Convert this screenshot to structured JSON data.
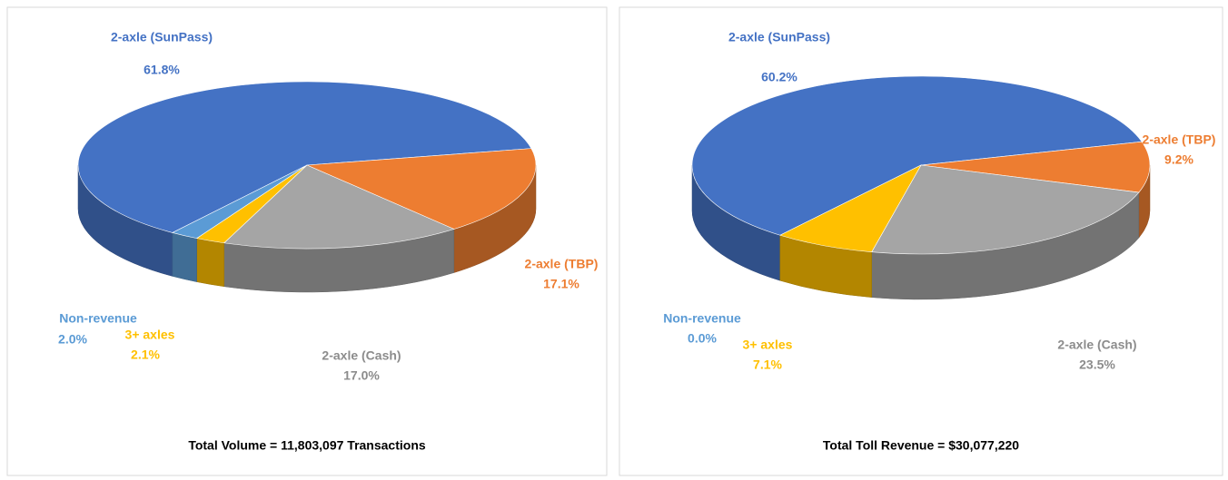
{
  "chart_data": [
    {
      "type": "pie",
      "title": "Total Volume = 11,803,097 Transactions",
      "categories": [
        "2-axle (SunPass)",
        "2-axle (TBP)",
        "2-axle (Cash)",
        "3+ axles",
        "Non-revenue"
      ],
      "values": [
        61.8,
        17.1,
        17.0,
        2.1,
        2.0
      ],
      "value_labels": [
        "61.8%",
        "17.1%",
        "17.0%",
        "2.1%",
        "2.0%"
      ],
      "colors": [
        "#4472c4",
        "#ed7d31",
        "#a5a5a5",
        "#ffc000",
        "#5b9bd5"
      ]
    },
    {
      "type": "pie",
      "title": "Total Toll Revenue = $30,077,220",
      "categories": [
        "2-axle (SunPass)",
        "2-axle (TBP)",
        "2-axle (Cash)",
        "3+ axles",
        "Non-revenue"
      ],
      "values": [
        60.2,
        9.2,
        23.5,
        7.1,
        0.0
      ],
      "value_labels": [
        "60.2%",
        "9.2%",
        "23.5%",
        "7.1%",
        "0.0%"
      ],
      "colors": [
        "#4472c4",
        "#ed7d31",
        "#a5a5a5",
        "#ffc000",
        "#5b9bd5"
      ]
    }
  ]
}
